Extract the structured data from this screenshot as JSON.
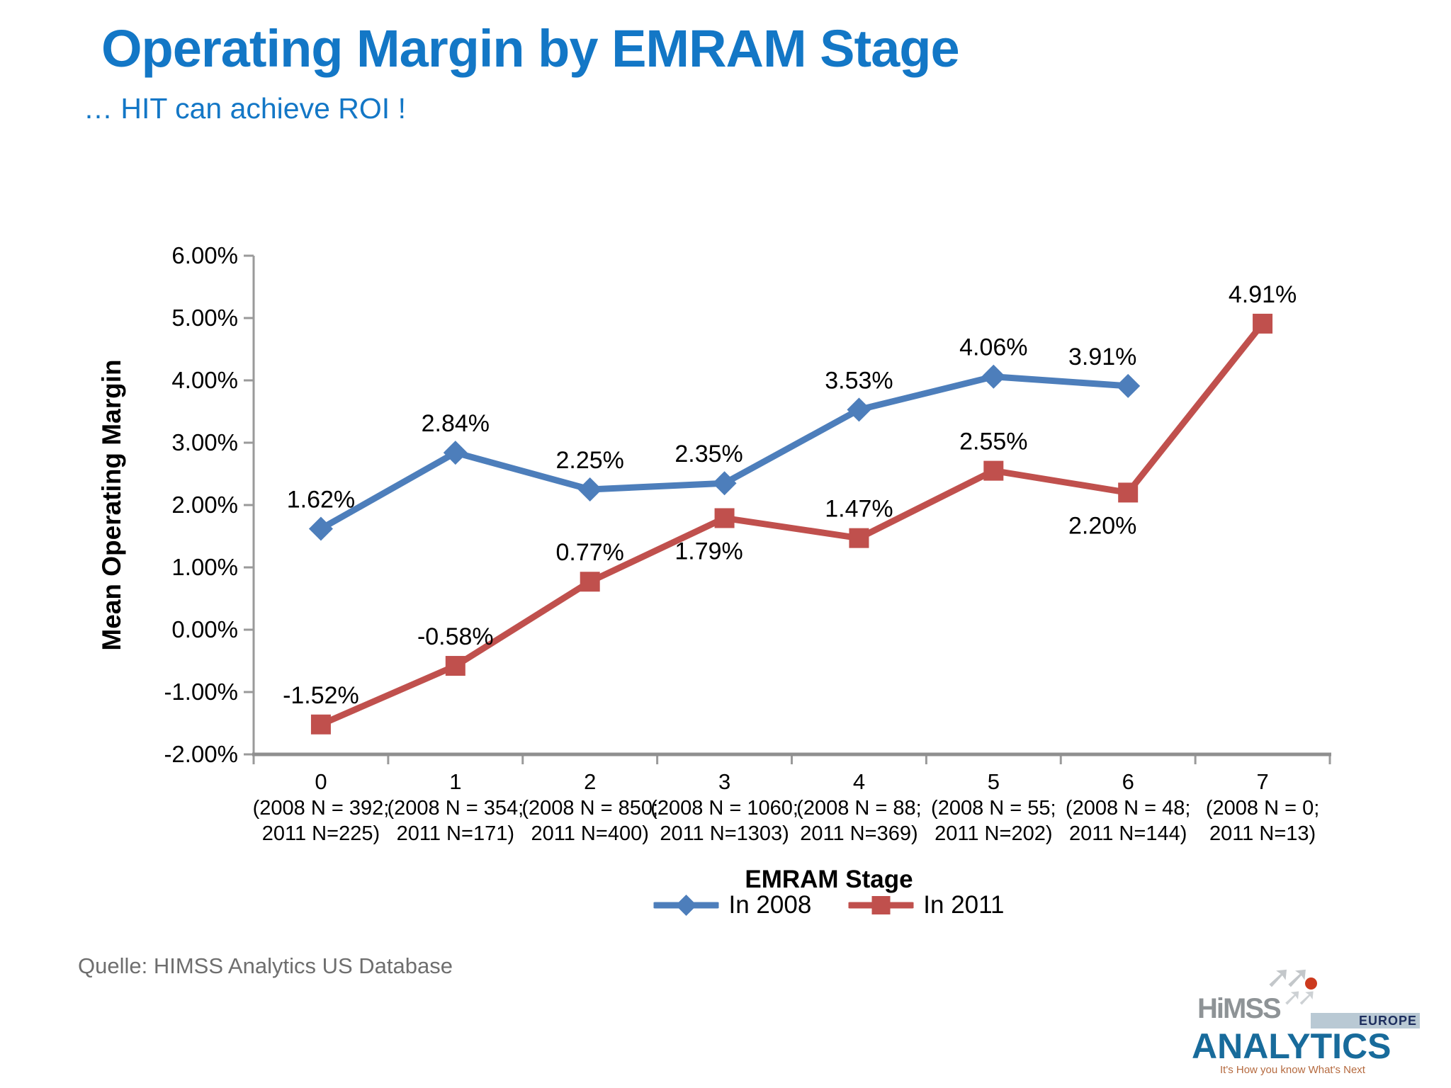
{
  "slide": {
    "title": "Operating Margin by EMRAM Stage",
    "subtitle": "… HIT can achieve ROI !",
    "source": "Quelle: HIMSS Analytics US Database"
  },
  "logo": {
    "himss": "HiMSS",
    "europe": "EUROPE",
    "analytics": "ANALYTICS",
    "tagline": "It's How you know What's Next",
    "arrow_glyph": "➚➚",
    "arrow_glyph_small": "➚➚"
  },
  "chart_data": {
    "type": "line",
    "title": "Operating Margin by EMRAM Stage",
    "xlabel": "EMRAM Stage",
    "ylabel": "Mean Operating Margin",
    "ylim": [
      -2,
      6
    ],
    "ytick_step": 1,
    "ytick_labels": [
      "6.00%",
      "5.00%",
      "4.00%",
      "3.00%",
      "2.00%",
      "1.00%",
      "0.00%",
      "-1.00%",
      "-2.00%"
    ],
    "grid": false,
    "legend_position": "bottom-center",
    "axis_color": "#9a9a9a",
    "categories": [
      "0",
      "1",
      "2",
      "3",
      "4",
      "5",
      "6",
      "7"
    ],
    "category_sublabels": [
      [
        "(2008 N = 392;",
        "2011 N=225)"
      ],
      [
        "(2008 N = 354;",
        "2011 N=171)"
      ],
      [
        "(2008 N = 850;",
        "2011 N=400)"
      ],
      [
        "(2008 N = 1060;",
        "2011 N=1303)"
      ],
      [
        "(2008 N = 88;",
        "2011 N=369)"
      ],
      [
        "(2008 N = 55;",
        "2011 N=202)"
      ],
      [
        "(2008 N = 48;",
        "2011 N=144)"
      ],
      [
        "(2008 N = 0;",
        "2011 N=13)"
      ]
    ],
    "series": [
      {
        "name": "In 2008",
        "color": "#4d7ebb",
        "marker": "diamond",
        "values": [
          1.62,
          2.84,
          2.25,
          2.35,
          3.53,
          4.06,
          3.91,
          null
        ],
        "labels": [
          "1.62%",
          "2.84%",
          "2.25%",
          "2.35%",
          "3.53%",
          "4.06%",
          "3.91%",
          null
        ],
        "label_dx": [
          0,
          0,
          0,
          -22,
          0,
          0,
          -36,
          0
        ],
        "label_dy": [
          -30,
          -30,
          -30,
          -30,
          -30,
          -30,
          -30,
          -30
        ]
      },
      {
        "name": "In 2011",
        "color": "#c0504d",
        "marker": "square",
        "values": [
          -1.52,
          -0.58,
          0.77,
          1.79,
          1.47,
          2.55,
          2.2,
          4.91
        ],
        "labels": [
          "-1.52%",
          "-0.58%",
          "0.77%",
          "1.79%",
          "1.47%",
          "2.55%",
          "2.20%",
          "4.91%"
        ],
        "label_dx": [
          0,
          0,
          0,
          -22,
          0,
          0,
          -36,
          0
        ],
        "label_dy": [
          -30,
          -30,
          -30,
          58,
          -30,
          -30,
          58,
          -30
        ]
      }
    ]
  }
}
